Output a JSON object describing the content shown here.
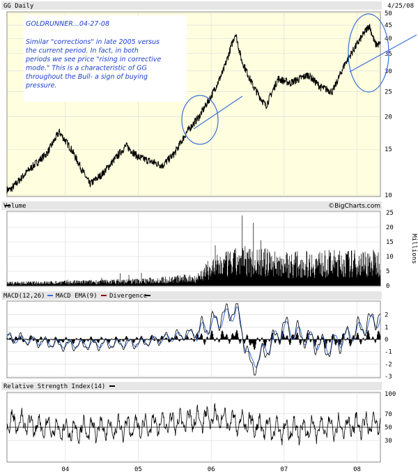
{
  "header": {
    "symbol_label": "GG Daily",
    "date": "4/25/08"
  },
  "annotation": {
    "title": "GOLDRUNNER...04-27-08",
    "body_lines": [
      "Similar \"corrections\" in late 2005 versus",
      "the current period.  In fact, in both",
      "periods we see price \"rising in corrective",
      "mode.\"  This is a characteristic of GG",
      "throughout the Bull- a sign of buying",
      "pressure."
    ],
    "text_color": "#1a3fd0",
    "box_color": "#ffffff"
  },
  "panels": {
    "volume_label": "Volume",
    "volume_units": "Millions",
    "watermark": "©BigCharts.com",
    "macd_label": "MACD(12,26)",
    "macd_ema_label": "MACD EMA(9)",
    "divergence_label": "Divergence",
    "rsi_label": "Relative Strength Index(14)"
  },
  "colors": {
    "plot_bg": "#ffffe0",
    "price_line": "#000000",
    "macd_line": "#000000",
    "signal_line": "#3a6fd8",
    "divergence_marker": "#8b0000",
    "annotation_shapes": "#3a6fd8"
  },
  "chart_data": [
    {
      "type": "line",
      "title": "GG Daily",
      "x_axis_ticks": [
        "04",
        "05",
        "06",
        "07",
        "08"
      ],
      "yscale": "log",
      "ylim": [
        10,
        50
      ],
      "y_ticks": [
        10,
        15,
        20,
        25,
        30,
        35,
        40,
        45,
        50
      ],
      "series": [
        {
          "x": [
            "2003-04",
            "2003-07",
            "2003-10",
            "2003-12",
            "2004-02",
            "2004-05",
            "2004-07",
            "2004-11",
            "2005-01",
            "2005-05",
            "2005-07",
            "2005-09",
            "2005-11",
            "2006-01",
            "2006-03",
            "2006-05",
            "2006-06",
            "2006-08",
            "2006-10",
            "2006-12",
            "2007-02",
            "2007-05",
            "2007-07",
            "2007-09",
            "2007-11",
            "2008-01",
            "2008-03",
            "2008-04"
          ],
          "values": [
            10.5,
            12.5,
            14.5,
            17.5,
            15.0,
            11.0,
            12.0,
            15.5,
            14.0,
            13.0,
            14.5,
            17.5,
            20.0,
            24.0,
            30.0,
            42.0,
            33.0,
            26.0,
            22.0,
            28.0,
            27.0,
            29.0,
            26.0,
            25.0,
            32.0,
            38.0,
            45.0,
            38.0
          ]
        }
      ],
      "annotations": [
        "ellipse around late 2005 consolidation",
        "ellipse around early 2008 consolidation",
        "trend line late 2005 - mid 2006",
        "trend line late 2007 - 2008"
      ]
    },
    {
      "type": "bar",
      "title": "Volume",
      "ylabel": "Millions",
      "ylim": [
        0,
        25
      ],
      "y_ticks": [
        0,
        5,
        10,
        15,
        20,
        25
      ],
      "series": [
        {
          "x": [
            "2003",
            "2004",
            "2005",
            "2005-late",
            "2006",
            "2006-mid",
            "2007",
            "2008"
          ],
          "values": [
            1.0,
            1.3,
            1.8,
            3.0,
            7.0,
            10.0,
            8.5,
            9.0
          ]
        }
      ]
    },
    {
      "type": "line",
      "title": "MACD(12,26)",
      "ylim": [
        -3,
        3
      ],
      "y_ticks": [
        -3,
        -2,
        -1,
        0,
        1,
        2
      ],
      "series": [
        {
          "name": "MACD(12,26)",
          "x": [
            "2003",
            "2004",
            "2005",
            "2005-late",
            "2006-mid",
            "2006-late",
            "2007",
            "2007-late",
            "2008"
          ],
          "values": [
            0.2,
            -0.5,
            -0.3,
            0.6,
            2.6,
            -2.5,
            1.1,
            -0.8,
            2.0
          ]
        },
        {
          "name": "MACD EMA(9)",
          "x": [
            "2003",
            "2004",
            "2005",
            "2005-late",
            "2006-mid",
            "2006-late",
            "2007",
            "2007-late",
            "2008"
          ],
          "values": [
            0.1,
            -0.4,
            -0.3,
            0.5,
            2.3,
            -2.1,
            0.9,
            -0.6,
            1.7
          ]
        },
        {
          "name": "Divergence"
        }
      ]
    },
    {
      "type": "line",
      "title": "Relative Strength Index(14)",
      "ylim": [
        0,
        100
      ],
      "y_ticks": [
        30,
        50,
        70,
        100
      ],
      "series": [
        {
          "x": [
            "2003",
            "2004",
            "2005",
            "2006",
            "2007",
            "2008"
          ],
          "values": [
            60,
            45,
            50,
            65,
            45,
            55
          ]
        }
      ]
    }
  ]
}
